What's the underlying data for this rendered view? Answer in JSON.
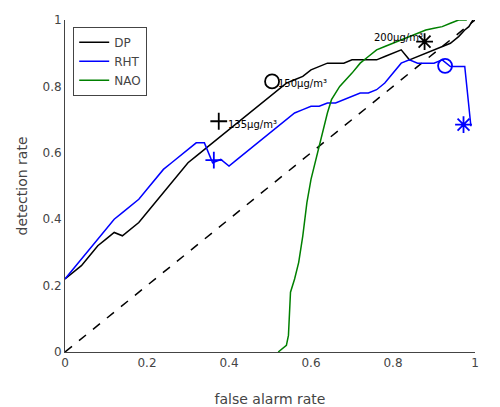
{
  "chart_data": {
    "type": "line",
    "xlabel": "false alarm rate",
    "ylabel": "detection rate",
    "xlim": [
      0,
      1
    ],
    "ylim": [
      0,
      1
    ],
    "xticks": [
      0,
      0.2,
      0.4,
      0.6,
      0.8,
      1
    ],
    "yticks": [
      0,
      0.2,
      0.4,
      0.6,
      0.8,
      1
    ],
    "grid": false,
    "legend": "upper left",
    "series": [
      {
        "color": "black",
        "line_style": "dashed",
        "x": [
          0,
          1
        ],
        "values": [
          0,
          1
        ]
      },
      {
        "name": "DP",
        "color": "black",
        "line_style": "solid",
        "x": [
          0.0,
          0.02,
          0.04,
          0.06,
          0.08,
          0.1,
          0.12,
          0.14,
          0.16,
          0.18,
          0.2,
          0.22,
          0.24,
          0.26,
          0.28,
          0.3,
          0.32,
          0.34,
          0.36,
          0.38,
          0.4,
          0.42,
          0.44,
          0.46,
          0.48,
          0.5,
          0.52,
          0.54,
          0.56,
          0.58,
          0.6,
          0.62,
          0.64,
          0.66,
          0.68,
          0.7,
          0.72,
          0.74,
          0.76,
          0.78,
          0.8,
          0.82,
          0.84,
          0.86,
          0.88,
          0.9,
          0.92,
          0.94,
          0.96,
          0.975,
          0.985,
          0.995
        ],
        "values": [
          0.22,
          0.24,
          0.26,
          0.29,
          0.32,
          0.34,
          0.36,
          0.35,
          0.37,
          0.39,
          0.42,
          0.45,
          0.48,
          0.51,
          0.54,
          0.57,
          0.59,
          0.61,
          0.63,
          0.65,
          0.67,
          0.69,
          0.71,
          0.73,
          0.75,
          0.77,
          0.79,
          0.81,
          0.82,
          0.83,
          0.85,
          0.86,
          0.87,
          0.87,
          0.87,
          0.88,
          0.88,
          0.88,
          0.88,
          0.89,
          0.9,
          0.91,
          0.88,
          0.89,
          0.9,
          0.91,
          0.92,
          0.93,
          0.95,
          0.97,
          0.98,
          1.0
        ]
      },
      {
        "name": "RHT",
        "color": "blue",
        "line_style": "solid",
        "x": [
          0.0,
          0.02,
          0.04,
          0.06,
          0.08,
          0.1,
          0.12,
          0.14,
          0.16,
          0.18,
          0.2,
          0.22,
          0.24,
          0.26,
          0.28,
          0.3,
          0.32,
          0.34,
          0.36,
          0.38,
          0.4,
          0.42,
          0.44,
          0.46,
          0.48,
          0.5,
          0.52,
          0.54,
          0.56,
          0.58,
          0.6,
          0.62,
          0.64,
          0.66,
          0.68,
          0.7,
          0.72,
          0.74,
          0.76,
          0.78,
          0.8,
          0.82,
          0.84,
          0.86,
          0.88,
          0.9,
          0.92,
          0.94,
          0.96,
          0.975,
          0.99
        ],
        "values": [
          0.22,
          0.25,
          0.28,
          0.31,
          0.34,
          0.37,
          0.4,
          0.42,
          0.44,
          0.46,
          0.49,
          0.52,
          0.55,
          0.57,
          0.59,
          0.61,
          0.63,
          0.63,
          0.57,
          0.58,
          0.56,
          0.58,
          0.6,
          0.62,
          0.64,
          0.66,
          0.68,
          0.7,
          0.72,
          0.73,
          0.74,
          0.74,
          0.75,
          0.75,
          0.76,
          0.77,
          0.78,
          0.78,
          0.79,
          0.81,
          0.84,
          0.87,
          0.88,
          0.87,
          0.87,
          0.87,
          0.88,
          0.86,
          0.86,
          0.86,
          0.68
        ]
      },
      {
        "name": "NAO",
        "color": "green",
        "line_style": "solid",
        "x": [
          0.52,
          0.53,
          0.54,
          0.545,
          0.55,
          0.56,
          0.57,
          0.58,
          0.59,
          0.6,
          0.61,
          0.62,
          0.63,
          0.64,
          0.65,
          0.67,
          0.7,
          0.72,
          0.74,
          0.76,
          0.78,
          0.8,
          0.82,
          0.84,
          0.86,
          0.88,
          0.9,
          0.92,
          0.94,
          0.96,
          0.97,
          0.98
        ],
        "values": [
          0.0,
          0.01,
          0.02,
          0.05,
          0.18,
          0.22,
          0.27,
          0.35,
          0.45,
          0.52,
          0.57,
          0.62,
          0.67,
          0.72,
          0.76,
          0.8,
          0.84,
          0.87,
          0.89,
          0.91,
          0.92,
          0.93,
          0.94,
          0.95,
          0.96,
          0.97,
          0.975,
          0.98,
          0.99,
          1.0,
          1.0,
          1.0
        ]
      },
      {
        "type": "scatter",
        "marker": "plus",
        "color": "black",
        "x": [
          0.375
        ],
        "values": [
          0.695
        ]
      },
      {
        "type": "scatter",
        "marker": "circle",
        "color": "black",
        "x": [
          0.505
        ],
        "values": [
          0.815
        ]
      },
      {
        "type": "scatter",
        "marker": "star",
        "color": "black",
        "x": [
          0.877
        ],
        "values": [
          0.935
        ]
      },
      {
        "type": "scatter",
        "marker": "plus",
        "color": "blue",
        "x": [
          0.363
        ],
        "values": [
          0.578
        ]
      },
      {
        "type": "scatter",
        "marker": "circle",
        "color": "blue",
        "x": [
          0.927
        ],
        "values": [
          0.862
        ]
      },
      {
        "type": "scatter",
        "marker": "star",
        "color": "blue",
        "x": [
          0.972
        ],
        "values": [
          0.685
        ]
      }
    ],
    "annotations": [
      {
        "text": "135μg/m³",
        "x": 0.392,
        "y": 0.685
      },
      {
        "text": "150μg/m³",
        "x": 0.515,
        "y": 0.81
      },
      {
        "text": "200μg/m³",
        "x": 0.748,
        "y": 0.948
      }
    ]
  }
}
